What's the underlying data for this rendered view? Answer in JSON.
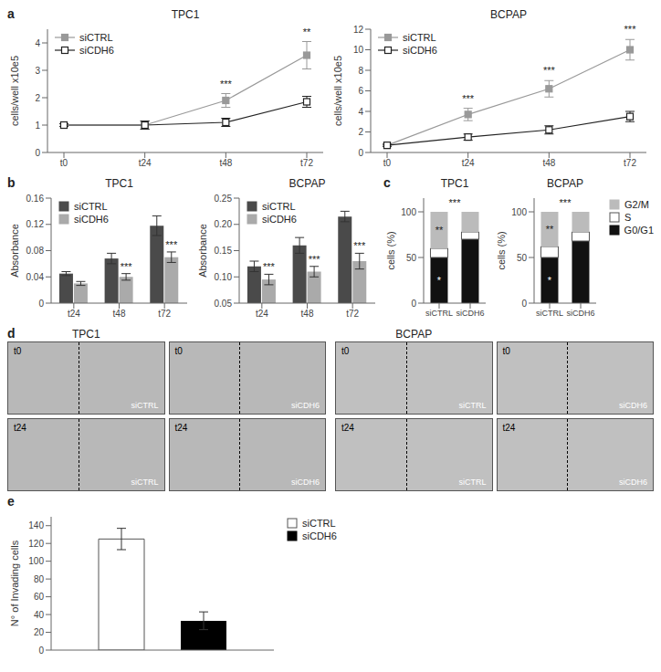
{
  "chart_data": [
    {
      "type": "line",
      "panel_label": "a",
      "title": "TPC1",
      "y_label": "cells/well x10e5",
      "categories": [
        "t0",
        "t24",
        "t48",
        "t72"
      ],
      "series": [
        {
          "name": "siCTRL",
          "color": "#999999",
          "marker": "square",
          "values": [
            1.0,
            1.0,
            1.9,
            3.55
          ],
          "yerr": [
            0.05,
            0.15,
            0.25,
            0.5
          ]
        },
        {
          "name": "siCDH6",
          "color": "#222222",
          "marker": "open_square",
          "values": [
            1.0,
            1.0,
            1.1,
            1.85
          ],
          "yerr": [
            0.05,
            0.15,
            0.15,
            0.2
          ]
        }
      ],
      "ylim": [
        0,
        4.5
      ],
      "yticks": [
        0,
        1,
        2,
        3,
        4
      ],
      "legend": "upper left",
      "annotations": [
        {
          "text": "***",
          "category": "t48",
          "series": "siCTRL"
        },
        {
          "text": "**",
          "category": "t72",
          "series": "siCTRL"
        }
      ]
    },
    {
      "type": "line",
      "title": "BCPAP",
      "y_label": "cells/well x10e5",
      "categories": [
        "t0",
        "t24",
        "t48",
        "t72"
      ],
      "series": [
        {
          "name": "siCTRL",
          "color": "#999999",
          "marker": "square",
          "values": [
            0.7,
            3.7,
            6.2,
            10.0
          ],
          "yerr": [
            0.1,
            0.6,
            0.8,
            1.0
          ]
        },
        {
          "name": "siCDH6",
          "color": "#222222",
          "marker": "open_square",
          "values": [
            0.7,
            1.5,
            2.2,
            3.5
          ],
          "yerr": [
            0.1,
            0.3,
            0.4,
            0.5
          ]
        }
      ],
      "ylim": [
        0,
        12
      ],
      "yticks": [
        0,
        2,
        4,
        6,
        8,
        10,
        12
      ],
      "legend": "upper left",
      "annotations": [
        {
          "text": "***",
          "category": "t24",
          "series": "siCTRL"
        },
        {
          "text": "***",
          "category": "t48",
          "series": "siCTRL"
        },
        {
          "text": "***",
          "category": "t72",
          "series": "siCTRL"
        }
      ]
    },
    {
      "type": "bar",
      "panel_label": "b",
      "title": "TPC1",
      "y_label": "Absorbance",
      "categories": [
        "t24",
        "t48",
        "t72"
      ],
      "series": [
        {
          "name": "siCTRL",
          "color": "#4a4a4a",
          "values": [
            0.045,
            0.068,
            0.118
          ],
          "yerr": [
            0.003,
            0.008,
            0.015
          ]
        },
        {
          "name": "siCDH6",
          "color": "#aaaaaa",
          "values": [
            0.03,
            0.04,
            0.07
          ],
          "yerr": [
            0.003,
            0.005,
            0.008
          ]
        }
      ],
      "ylim": [
        0,
        0.16
      ],
      "yticks": [
        0,
        0.04,
        0.08,
        0.12,
        0.16
      ],
      "legend": "upper left",
      "annotations": [
        {
          "text": "***",
          "category": "t48",
          "series": "siCDH6"
        },
        {
          "text": "***",
          "category": "t72",
          "series": "siCDH6"
        }
      ]
    },
    {
      "type": "bar",
      "title": "BCPAP",
      "y_label": "Absorbance",
      "categories": [
        "t24",
        "t48",
        "t72"
      ],
      "series": [
        {
          "name": "siCTRL",
          "color": "#4a4a4a",
          "values": [
            0.12,
            0.16,
            0.215
          ],
          "yerr": [
            0.01,
            0.015,
            0.01
          ]
        },
        {
          "name": "siCDH6",
          "color": "#aaaaaa",
          "values": [
            0.095,
            0.11,
            0.13
          ],
          "yerr": [
            0.01,
            0.01,
            0.015
          ]
        }
      ],
      "ylim": [
        0.05,
        0.25
      ],
      "yticks": [
        0.05,
        {
          "value": 0.1,
          "label": "0.10"
        },
        0.15,
        {
          "value": 0.2,
          "label": "0.20"
        },
        0.25
      ],
      "legend": "upper left",
      "annotations": [
        {
          "text": "***",
          "category": "t24",
          "series": "siCDH6"
        },
        {
          "text": "***",
          "category": "t48",
          "series": "siCDH6"
        },
        {
          "text": "***",
          "category": "t72",
          "series": "siCDH6"
        }
      ]
    },
    {
      "type": "bar",
      "stacked": true,
      "panel_label": "c",
      "title": "TPC1",
      "y_label": "cells (%)",
      "categories": [
        "siCTRL",
        "siCDH6"
      ],
      "series": [
        {
          "name": "G0/G1",
          "color": "#111111",
          "values": [
            50,
            70
          ]
        },
        {
          "name": "S",
          "color": "#ffffff",
          "values": [
            10,
            8
          ]
        },
        {
          "name": "G2/M",
          "color": "#bbbbbb",
          "values": [
            40,
            22
          ]
        }
      ],
      "ylim": [
        0,
        115
      ],
      "yticks": [
        0,
        50,
        100
      ],
      "annotations": [
        {
          "text": "***"
        },
        {
          "text": "**",
          "category": "siCTRL",
          "series": "G2/M"
        },
        {
          "text": "*",
          "category": "siCTRL",
          "series": "G0/G1",
          "color": "#ffffff"
        }
      ]
    },
    {
      "type": "bar",
      "stacked": true,
      "title": "BCPAP",
      "y_label": "cells (%)",
      "categories": [
        "siCTRL",
        "siCDH6"
      ],
      "series": [
        {
          "name": "G0/G1",
          "color": "#111111",
          "values": [
            50,
            68
          ]
        },
        {
          "name": "S",
          "color": "#ffffff",
          "values": [
            12,
            10
          ]
        },
        {
          "name": "G2/M",
          "color": "#bbbbbb",
          "values": [
            38,
            22
          ]
        }
      ],
      "ylim": [
        0,
        115
      ],
      "yticks": [
        0,
        50,
        100
      ],
      "legend": "right",
      "annotations": [
        {
          "text": "***"
        },
        {
          "text": "**",
          "category": "siCTRL",
          "series": "G2/M"
        },
        {
          "text": "*",
          "category": "siCTRL",
          "series": "G0/G1",
          "color": "#ffffff"
        }
      ]
    },
    {
      "type": "image",
      "panel_label": "d",
      "title": "TPC1",
      "color": "#b8b8b8",
      "tiles": [
        {
          "time": "t0",
          "condition": "siCTRL"
        },
        {
          "time": "t0",
          "condition": "siCDH6"
        },
        {
          "time": "t24",
          "condition": "siCTRL"
        },
        {
          "time": "t24",
          "condition": "siCDH6"
        }
      ]
    },
    {
      "type": "image",
      "title": "BCPAP",
      "color": "#c0c0c0",
      "tiles": [
        {
          "time": "t0",
          "condition": "siCTRL"
        },
        {
          "time": "t0",
          "condition": "siCDH6"
        },
        {
          "time": "t24",
          "condition": "siCTRL"
        },
        {
          "time": "t24",
          "condition": "siCDH6"
        }
      ]
    },
    {
      "type": "bar",
      "panel_label": "e",
      "y_label": "N° of Invading cells",
      "categories": [
        null
      ],
      "series": [
        {
          "name": "siCTRL",
          "color": "#ffffff",
          "values": [
            125
          ],
          "yerr": [
            12
          ]
        },
        {
          "name": "siCDH6",
          "color": "#000000",
          "values": [
            33
          ],
          "yerr": [
            10
          ]
        }
      ],
      "ylim": [
        0,
        150
      ],
      "yticks": [
        0,
        20,
        40,
        60,
        80,
        100,
        120,
        140
      ],
      "tick_labels": "y",
      "legend": "right"
    }
  ]
}
